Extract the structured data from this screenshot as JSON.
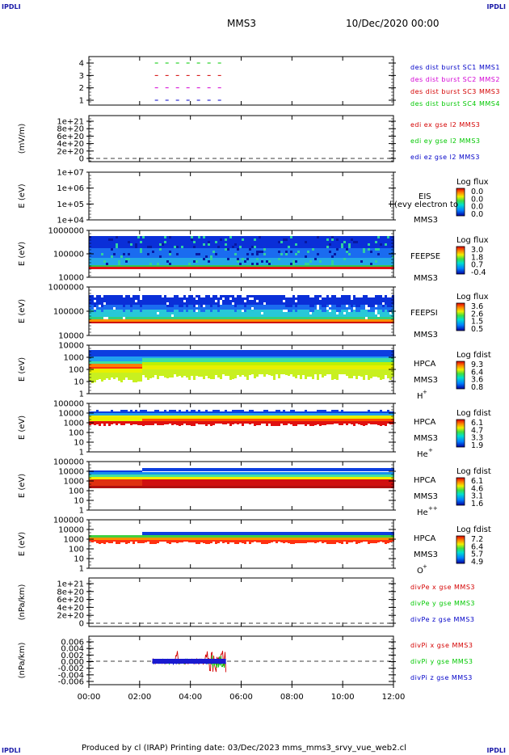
{
  "corners": {
    "tl": "IPDLI",
    "tr": "IPDLI",
    "bl": "IPDLI",
    "br": "IPDLI"
  },
  "header": {
    "mission": "MMS3",
    "date": "10/Dec/2020 00:00"
  },
  "footer": {
    "text": "Produced by cl (IRAP)   Printing date: 03/Dec/2023   mms_mms3_srvy_vue_web2.cl"
  },
  "colors": {
    "blue": "#0000c8",
    "magenta": "#d400d4",
    "red": "#d40000",
    "green": "#00c800",
    "black": "#000000"
  },
  "chart_data": [
    {
      "id": "burst",
      "type": "line",
      "yticks": [
        "1",
        "2",
        "3",
        "4"
      ],
      "series": [
        {
          "name": "des dist burst SC1 MMS1",
          "color": "#0000c8",
          "y": 1,
          "x_start_hr": 2.6,
          "x_end_hr": 5.3
        },
        {
          "name": "des dist burst SC2 MMS2",
          "color": "#d400d4",
          "y": 2,
          "x_start_hr": 2.6,
          "x_end_hr": 5.3
        },
        {
          "name": "des dist burst SC3 MMS3",
          "color": "#d40000",
          "y": 3,
          "x_start_hr": 2.6,
          "x_end_hr": 5.3
        },
        {
          "name": "des dist burst SC4 MMS4",
          "color": "#00c800",
          "y": 4,
          "x_start_hr": 2.6,
          "x_end_hr": 5.3
        }
      ]
    },
    {
      "id": "edi",
      "type": "line",
      "ylabel": "(mV/m)",
      "yticks": [
        "0",
        "2e+20",
        "4e+20",
        "6e+20",
        "8e+20",
        "1e+21"
      ],
      "series": [
        {
          "name": "edi ex gse l2 MMS3",
          "color": "#d40000"
        },
        {
          "name": "edi ey gse l2 MMS3",
          "color": "#00c800"
        },
        {
          "name": "edi ez gse l2 MMS3",
          "color": "#0000c8"
        }
      ]
    },
    {
      "id": "eis",
      "type": "heatmap",
      "ylabel": "E (eV)",
      "yticks": [
        "1e+04",
        "1e+05",
        "1e+06",
        "1e+07"
      ],
      "instrument": "EIS",
      "sc": "MMS3",
      "overlay": "l (evy electron to",
      "colorbar": {
        "title": "Log flux",
        "ticks": [
          "0.0",
          "0.0",
          "0.0",
          "0.0"
        ]
      }
    },
    {
      "id": "feepse",
      "type": "heatmap",
      "ylabel": "E (eV)",
      "yticks": [
        "10000",
        "100000",
        "1000000"
      ],
      "instrument": "FEEPSE",
      "sc": "MMS3",
      "colorbar": {
        "title": "Log flux",
        "ticks": [
          "3.0",
          "1.8",
          "0.7",
          "-0.4"
        ]
      }
    },
    {
      "id": "feepsi",
      "type": "heatmap",
      "ylabel": "E (eV)",
      "yticks": [
        "10000",
        "100000",
        "1000000"
      ],
      "instrument": "FEEPSI",
      "sc": "MMS3",
      "colorbar": {
        "title": "Log flux",
        "ticks": [
          "3.6",
          "2.6",
          "1.5",
          "0.5"
        ]
      }
    },
    {
      "id": "hpca_h",
      "type": "heatmap",
      "ylabel": "E (eV)",
      "yticks": [
        "1",
        "10",
        "100",
        "1000",
        "10000"
      ],
      "instrument": "HPCA",
      "sc": "MMS3",
      "species": "H",
      "charge": "+",
      "colorbar": {
        "title": "Log fdist",
        "ticks": [
          "9.3",
          "6.4",
          "3.6",
          "0.8"
        ]
      }
    },
    {
      "id": "hpca_he",
      "type": "heatmap",
      "ylabel": "E (eV)",
      "yticks": [
        "1",
        "10",
        "100",
        "1000",
        "10000",
        "100000"
      ],
      "instrument": "HPCA",
      "sc": "MMS3",
      "species": "He",
      "charge": "+",
      "colorbar": {
        "title": "Log fdist",
        "ticks": [
          "6.1",
          "4.7",
          "3.3",
          "1.9"
        ]
      }
    },
    {
      "id": "hpca_he2",
      "type": "heatmap",
      "ylabel": "E (eV)",
      "yticks": [
        "1",
        "10",
        "100",
        "1000",
        "10000",
        "100000"
      ],
      "instrument": "HPCA",
      "sc": "MMS3",
      "species": "He",
      "charge": "++",
      "colorbar": {
        "title": "Log fdist",
        "ticks": [
          "6.1",
          "4.6",
          "3.1",
          "1.6"
        ]
      }
    },
    {
      "id": "hpca_o",
      "type": "heatmap",
      "ylabel": "E (eV)",
      "yticks": [
        "1",
        "10",
        "100",
        "1000",
        "10000",
        "100000"
      ],
      "instrument": "HPCA",
      "sc": "MMS3",
      "species": "O",
      "charge": "+",
      "colorbar": {
        "title": "Log fdist",
        "ticks": [
          "7.2",
          "6.4",
          "5.7",
          "4.9"
        ]
      }
    },
    {
      "id": "divpe",
      "type": "line",
      "ylabel": "(nPa/km)",
      "yticks": [
        "0",
        "2e+20",
        "4e+20",
        "6e+20",
        "8e+20",
        "1e+21"
      ],
      "series": [
        {
          "name": "divPe x gse MMS3",
          "color": "#d40000"
        },
        {
          "name": "divPe y gse MMS3",
          "color": "#00c800"
        },
        {
          "name": "divPe z gse MMS3",
          "color": "#0000c8"
        }
      ]
    },
    {
      "id": "divpi",
      "type": "line",
      "ylabel": "(nPa/km)",
      "yticks": [
        "-0.006",
        "-0.004",
        "-0.002",
        "0.000",
        "0.002",
        "0.004",
        "0.006"
      ],
      "ylim": [
        -0.006,
        0.006
      ],
      "x_start_hr": 2.5,
      "x_end_hr": 5.4,
      "series": [
        {
          "name": "divPi x gse MMS3",
          "color": "#d40000"
        },
        {
          "name": "divPi y gse MMS3",
          "color": "#00c800"
        },
        {
          "name": "divPi z gse MMS3",
          "color": "#0000c8"
        }
      ]
    }
  ],
  "xaxis": {
    "ticks": [
      "00:00",
      "02:00",
      "04:00",
      "06:00",
      "08:00",
      "10:00",
      "12:00"
    ],
    "range_hr": [
      0,
      12
    ]
  }
}
